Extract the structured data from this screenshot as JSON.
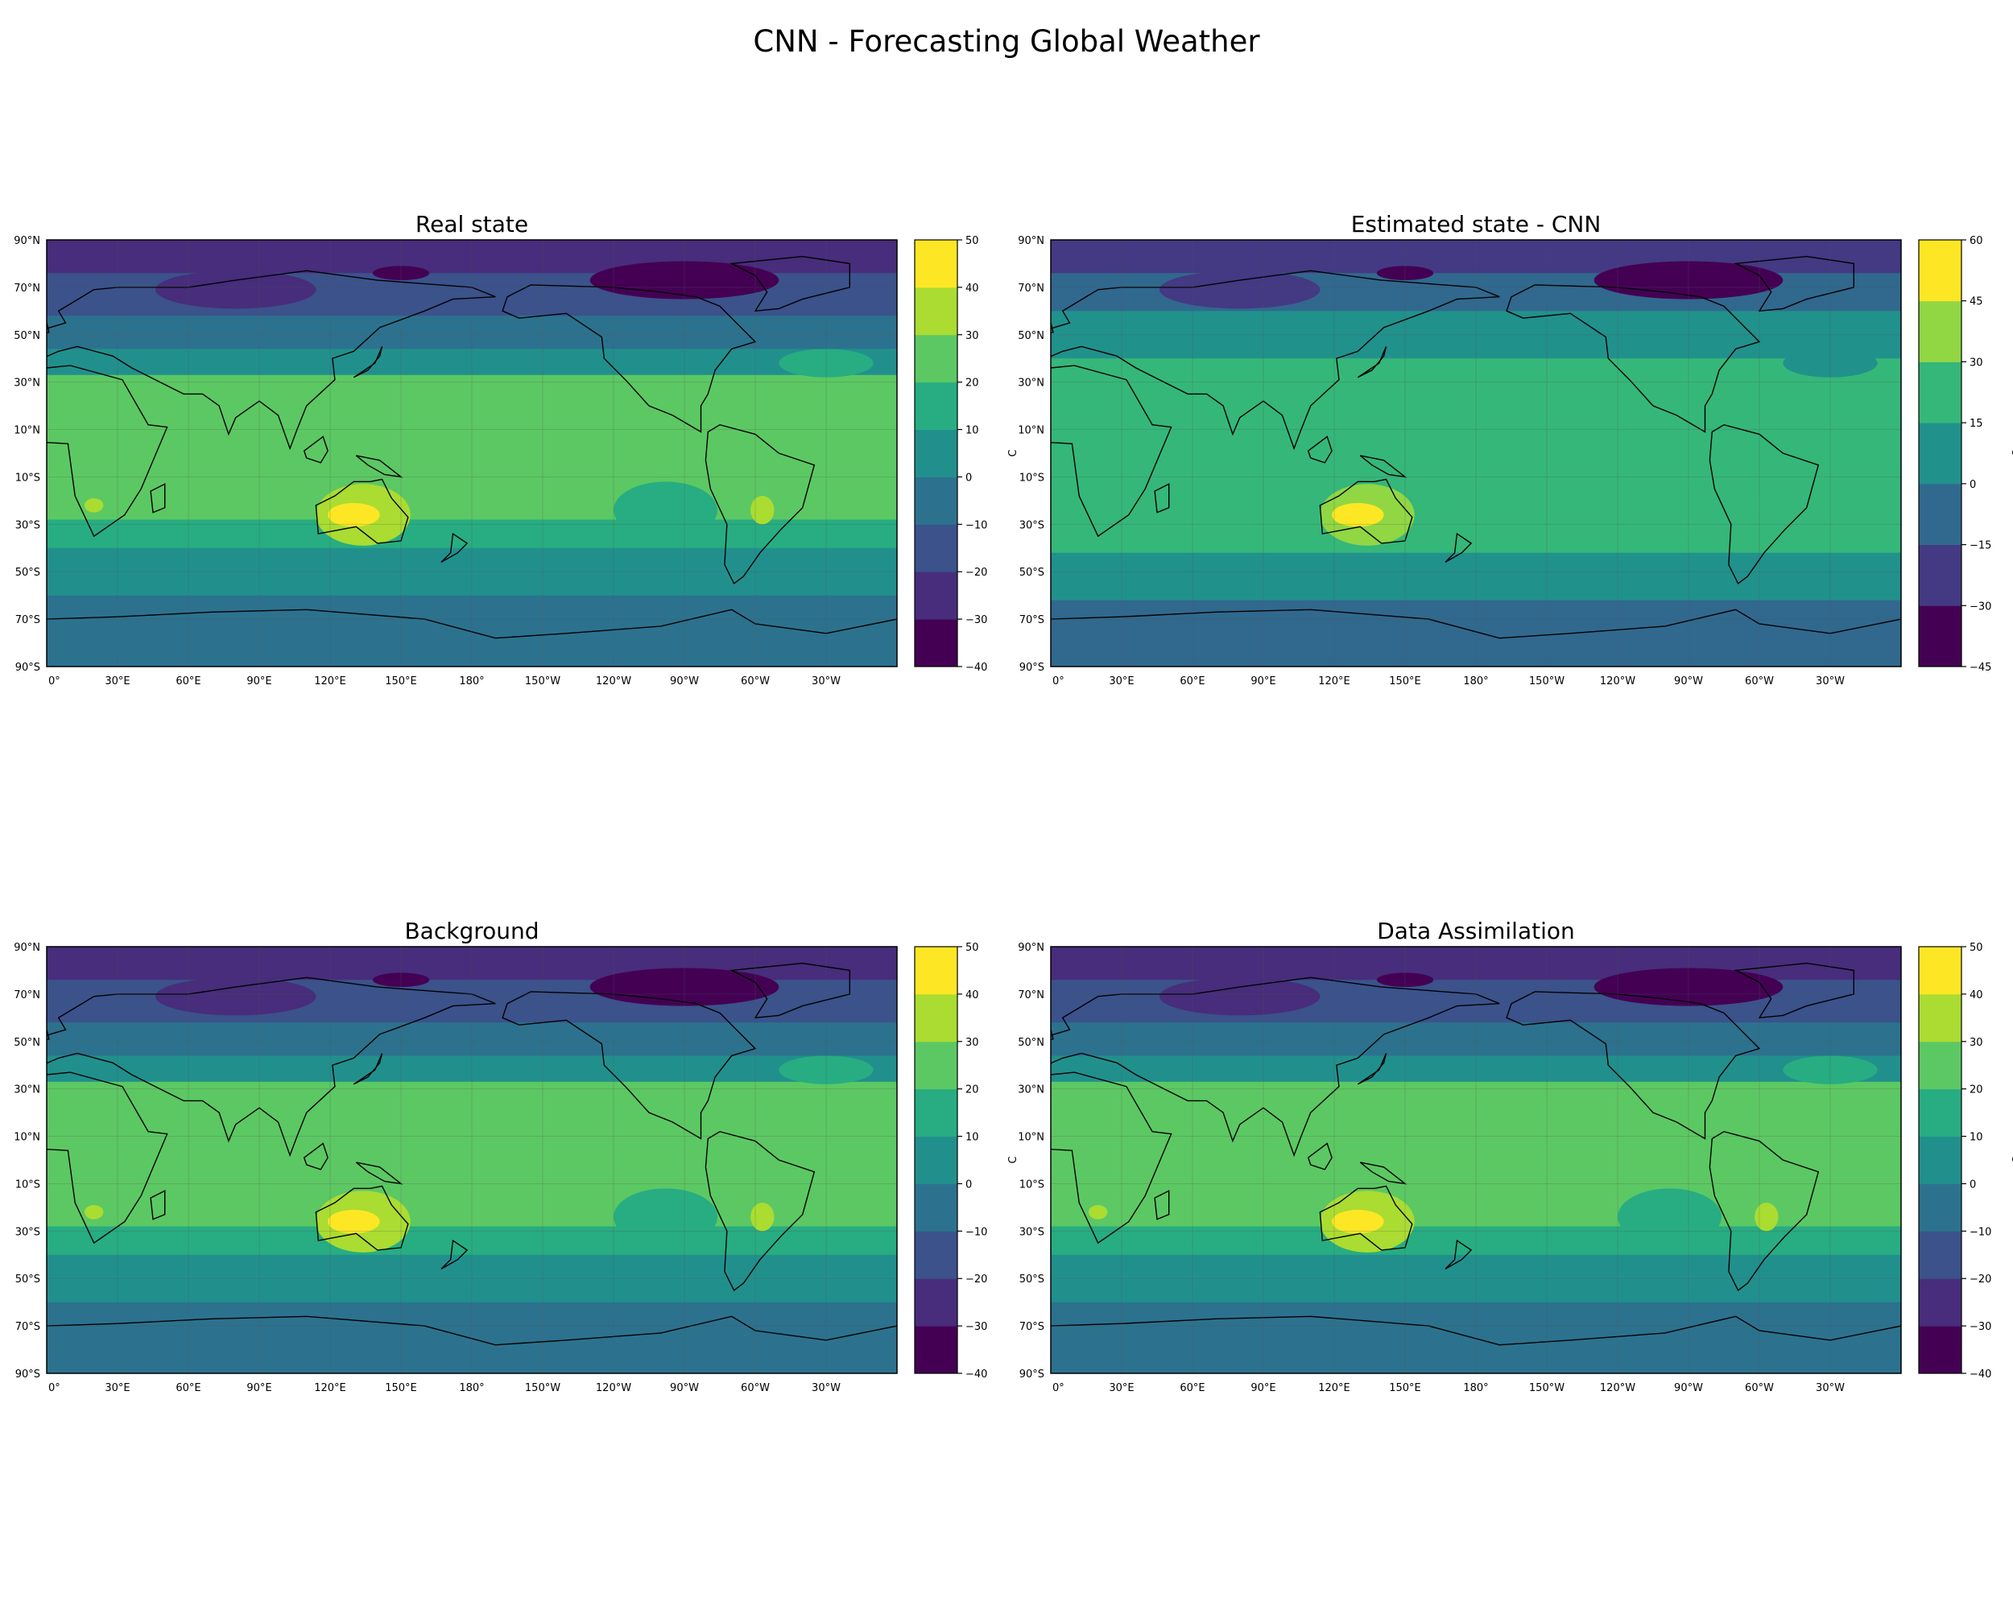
{
  "figure": {
    "title": "CNN - Forecasting Global Weather"
  },
  "axes_labels": {
    "lat_ticks": [
      "90°N",
      "70°N",
      "50°N",
      "30°N",
      "10°N",
      "10°S",
      "30°S",
      "50°S",
      "70°S",
      "90°S"
    ],
    "lon_ticks": [
      "0°",
      "30°E",
      "60°E",
      "90°E",
      "120°E",
      "150°E",
      "180°",
      "150°W",
      "120°W",
      "90°W",
      "60°W",
      "30°W"
    ]
  },
  "chart_data": [
    {
      "type": "heatmap",
      "title": "Real state",
      "colorbar": {
        "label": "C",
        "ticks": [
          "50",
          "40",
          "30",
          "20",
          "10",
          "0",
          "−10",
          "−20",
          "−30",
          "−40"
        ],
        "range": [
          -40,
          50
        ]
      }
    },
    {
      "type": "heatmap",
      "title": "Estimated state - CNN",
      "colorbar": {
        "label": "C",
        "ticks": [
          "60",
          "45",
          "30",
          "15",
          "0",
          "−15",
          "−30",
          "−45"
        ],
        "range": [
          -45,
          60
        ]
      }
    },
    {
      "type": "heatmap",
      "title": "Background",
      "colorbar": {
        "label": "C",
        "ticks": [
          "50",
          "40",
          "30",
          "20",
          "10",
          "0",
          "−10",
          "−20",
          "−30",
          "−40"
        ],
        "range": [
          -40,
          50
        ]
      }
    },
    {
      "type": "heatmap",
      "title": "Data Assimilation",
      "colorbar": {
        "label": "C",
        "ticks": [
          "50",
          "40",
          "30",
          "20",
          "10",
          "0",
          "−10",
          "−20",
          "−30",
          "−40"
        ],
        "range": [
          -40,
          50
        ]
      }
    }
  ],
  "colors": {
    "viridis9": [
      "#440154",
      "#472d7b",
      "#3b528b",
      "#2c728e",
      "#21908d",
      "#27ad81",
      "#5cc863",
      "#aadc32",
      "#fde725"
    ],
    "cnn7": [
      "#440154",
      "#443983",
      "#31688e",
      "#21918c",
      "#35b779",
      "#90d743",
      "#fde725"
    ]
  }
}
